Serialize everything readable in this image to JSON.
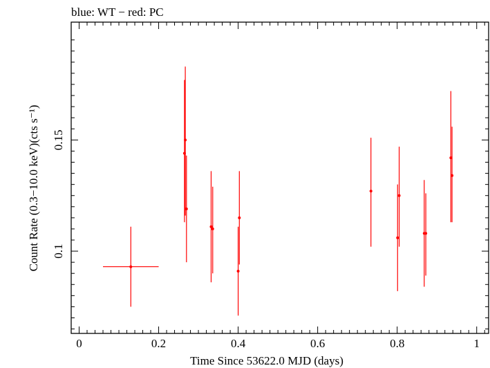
{
  "chart_data": {
    "type": "scatter",
    "title": "blue: WT − red: PC",
    "xlabel": "Time Since 53622.0 MJD (days)",
    "ylabel": "Count Rate (0.3−10.0 keV)(cts s⁻¹)",
    "xlim": [
      -0.02,
      1.03
    ],
    "ylim": [
      0.063,
      0.203
    ],
    "x_ticks": [
      0,
      0.2,
      0.4,
      0.6,
      0.8,
      1
    ],
    "x_tick_labels": [
      "0",
      "0.2",
      "0.4",
      "0.6",
      "0.8",
      "1"
    ],
    "y_ticks": [
      0.1,
      0.15
    ],
    "y_tick_labels": [
      "0.1",
      "0.15"
    ],
    "grid": false,
    "legend": "none",
    "series": [
      {
        "color": "#ff0000",
        "points": [
          {
            "x": 0.13,
            "y": 0.093,
            "xerr": 0.07,
            "ylo": 0.075,
            "yhi": 0.111
          },
          {
            "x": 0.265,
            "y": 0.144,
            "xerr": 0.002,
            "ylo": 0.113,
            "yhi": 0.177
          },
          {
            "x": 0.267,
            "y": 0.15,
            "xerr": 0.002,
            "ylo": 0.116,
            "yhi": 0.183
          },
          {
            "x": 0.27,
            "y": 0.119,
            "xerr": 0.002,
            "ylo": 0.095,
            "yhi": 0.143
          },
          {
            "x": 0.332,
            "y": 0.111,
            "xerr": 0.002,
            "ylo": 0.086,
            "yhi": 0.136
          },
          {
            "x": 0.336,
            "y": 0.11,
            "xerr": 0.002,
            "ylo": 0.09,
            "yhi": 0.129
          },
          {
            "x": 0.4,
            "y": 0.091,
            "xerr": 0.002,
            "ylo": 0.071,
            "yhi": 0.111
          },
          {
            "x": 0.403,
            "y": 0.115,
            "xerr": 0.002,
            "ylo": 0.094,
            "yhi": 0.136
          },
          {
            "x": 0.734,
            "y": 0.127,
            "xerr": 0.002,
            "ylo": 0.102,
            "yhi": 0.151
          },
          {
            "x": 0.801,
            "y": 0.106,
            "xerr": 0.002,
            "ylo": 0.082,
            "yhi": 0.13
          },
          {
            "x": 0.805,
            "y": 0.125,
            "xerr": 0.002,
            "ylo": 0.102,
            "yhi": 0.147
          },
          {
            "x": 0.868,
            "y": 0.108,
            "xerr": 0.002,
            "ylo": 0.084,
            "yhi": 0.132
          },
          {
            "x": 0.872,
            "y": 0.108,
            "xerr": 0.002,
            "ylo": 0.089,
            "yhi": 0.126
          },
          {
            "x": 0.935,
            "y": 0.142,
            "xerr": 0.002,
            "ylo": 0.113,
            "yhi": 0.172
          },
          {
            "x": 0.938,
            "y": 0.134,
            "xerr": 0.002,
            "ylo": 0.113,
            "yhi": 0.156
          }
        ]
      }
    ]
  }
}
